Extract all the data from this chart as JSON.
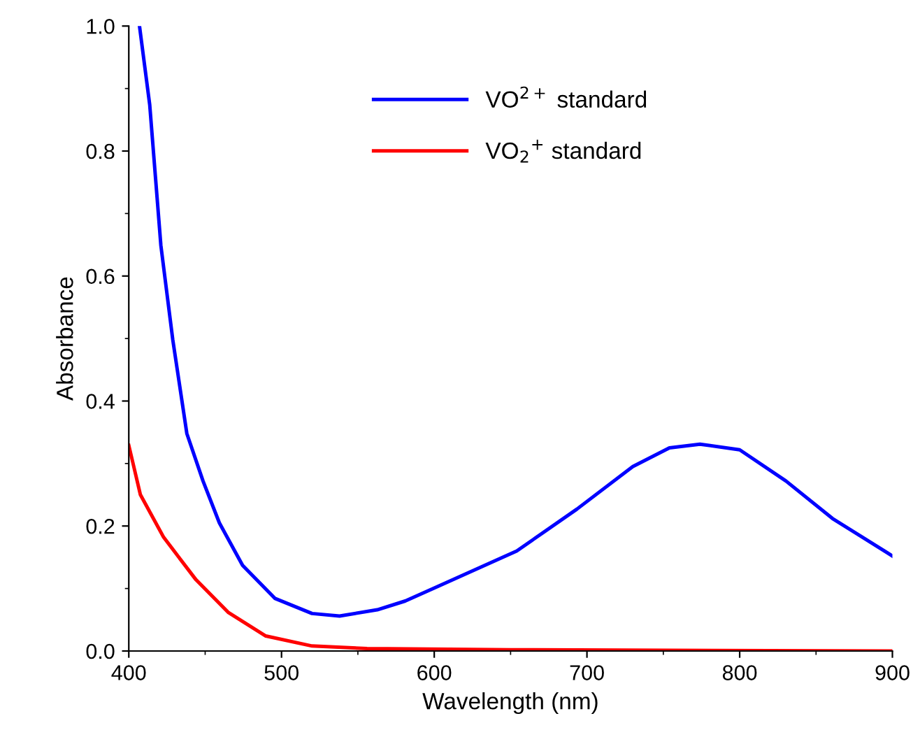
{
  "chart_data": {
    "type": "line",
    "xlabel": "Wavelength (nm)",
    "ylabel": "Absorbance",
    "xlim": [
      400,
      900
    ],
    "ylim": [
      0,
      1.0
    ],
    "xticks": [
      400,
      500,
      600,
      700,
      800,
      900
    ],
    "yticks": [
      {
        "value": 0,
        "label": "0.0"
      },
      0.2,
      0.4,
      0.6,
      0.8,
      {
        "value": 1.0,
        "label": "1.0"
      }
    ],
    "grid": false,
    "legend": "top",
    "marker": "none",
    "line_style": "solid",
    "series": [
      {
        "name": "VO$^{2+}$ standard",
        "color": "#0000ff",
        "x": [
          407,
          413.7,
          421,
          428.8,
          438,
          448.6,
          459.3,
          474.5,
          495.8,
          520,
          538,
          562.7,
          581,
          602,
          654,
          693.4,
          730,
          754,
          774,
          800,
          830.3,
          860.8,
          900
        ],
        "values": [
          1.0,
          0.874,
          0.649,
          0.498,
          0.348,
          0.272,
          0.205,
          0.137,
          0.084,
          0.06,
          0.056,
          0.066,
          0.08,
          0.103,
          0.16,
          0.227,
          0.295,
          0.325,
          0.331,
          0.322,
          0.272,
          0.212,
          0.152
        ]
      },
      {
        "name": "VO$_{2}$$^{+}$ standard",
        "color": "#ff0000",
        "x": [
          400,
          407.6,
          422.8,
          444,
          465,
          489.7,
          520,
          556,
          650,
          900
        ],
        "values": [
          0.329,
          0.25,
          0.182,
          0.114,
          0.062,
          0.024,
          0.008,
          0.004,
          0.002,
          0.0
        ]
      }
    ]
  }
}
